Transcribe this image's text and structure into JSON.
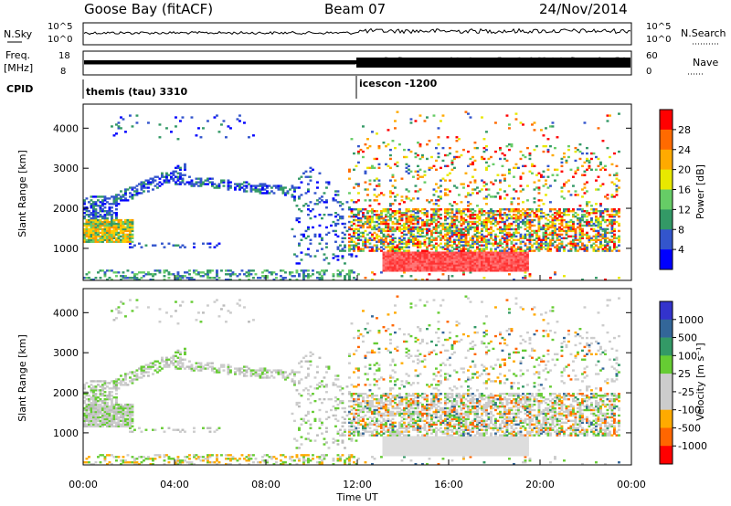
{
  "header": {
    "station": "Goose Bay (fitACF)",
    "beam": "Beam 07",
    "date": "24/Nov/2014"
  },
  "nsky_panel": {
    "left_label": "N.Sky",
    "left_ticks": [
      "10^5",
      "10^0"
    ],
    "right_ticks": [
      "10^5",
      "10^0"
    ],
    "right_label": "N.Search"
  },
  "freq_panel": {
    "left_label_line1": "Freq.",
    "left_label_line2": "[MHz]",
    "left_ticks": [
      "18",
      "8"
    ],
    "right_ticks": [
      "60",
      "0"
    ],
    "right_label": "Nave"
  },
  "cpid_panel": {
    "label": "CPID",
    "program_1": "themis (tau) 3310",
    "program_2": "icescon -1200"
  },
  "chart_data": [
    {
      "type": "heatmap",
      "title": "",
      "xlabel": "",
      "ylabel": "Slant Range [km]",
      "x_ticks": [
        "00:00",
        "04:00",
        "08:00",
        "12:00",
        "16:00",
        "20:00",
        "00:00"
      ],
      "y_ticks": [
        "1000",
        "2000",
        "3000",
        "4000"
      ],
      "ylim": [
        200,
        4600
      ],
      "colorbar": {
        "label": "Power [dB]",
        "ticks": [
          "28",
          "24",
          "20",
          "16",
          "12",
          "8",
          "4"
        ],
        "colors": [
          "#ff0000",
          "#ff6a00",
          "#ffaa00",
          "#e8e800",
          "#66cc66",
          "#339966",
          "#3355cc",
          "#0000ff"
        ]
      }
    },
    {
      "type": "heatmap",
      "title": "",
      "xlabel": "Time UT",
      "ylabel": "Slant Range [km]",
      "x_ticks": [
        "00:00",
        "04:00",
        "08:00",
        "12:00",
        "16:00",
        "20:00",
        "00:00"
      ],
      "y_ticks": [
        "1000",
        "2000",
        "3000",
        "4000"
      ],
      "ylim": [
        200,
        4600
      ],
      "colorbar": {
        "label": "Velocity [m s⁻¹]",
        "ticks": [
          "1000",
          "500",
          "100",
          "25",
          "-25",
          "-100",
          "-500",
          "-1000"
        ],
        "colors": [
          "#3333cc",
          "#336699",
          "#339966",
          "#66cc33",
          "#cccccc",
          "#cccccc",
          "#ffaa00",
          "#ff6600",
          "#ff0000"
        ]
      }
    }
  ]
}
